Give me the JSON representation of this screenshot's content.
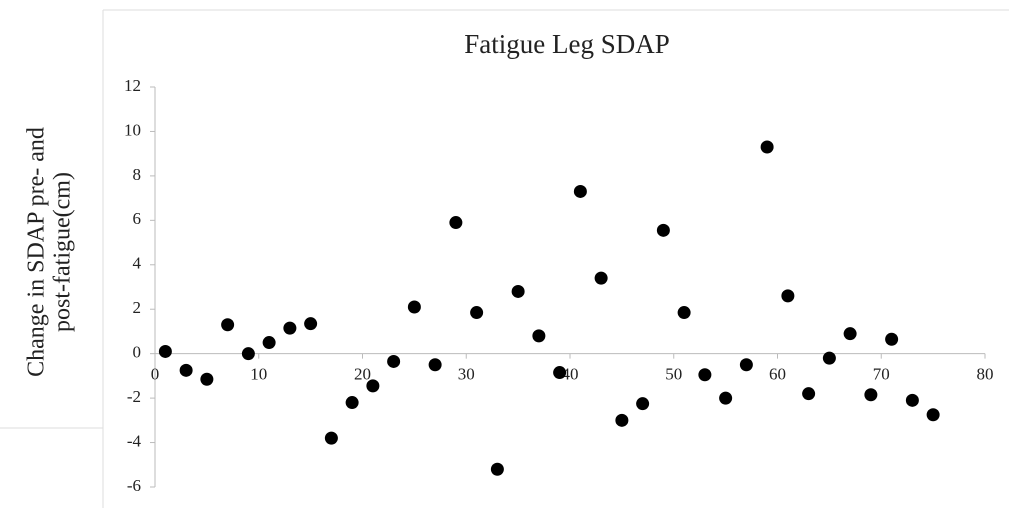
{
  "chart_data": {
    "type": "scatter",
    "title": "Fatigue Leg SDAP",
    "y_label": [
      "Change in SDAP pre- and",
      "post-fatigue(cm)"
    ],
    "color": "#000000",
    "x": [
      1,
      3,
      5,
      7,
      9,
      11,
      13,
      15,
      17,
      19,
      21,
      23,
      25,
      27,
      29,
      31,
      33,
      35,
      37,
      39,
      41,
      43,
      45,
      47,
      49,
      51,
      53,
      55,
      57,
      59,
      61,
      63,
      65,
      67,
      69,
      71,
      73,
      75
    ],
    "values": [
      0.1,
      -0.75,
      -1.15,
      1.3,
      0,
      0.5,
      1.15,
      1.35,
      -3.8,
      -2.2,
      -1.45,
      -0.35,
      2.1,
      -0.5,
      5.9,
      1.85,
      -5.2,
      2.8,
      0.8,
      -0.85,
      7.3,
      3.4,
      -3,
      -2.25,
      5.55,
      1.85,
      -0.95,
      -2,
      -0.5,
      9.3,
      2.6,
      -1.8,
      -0.2,
      0.9,
      -1.85,
      0.65,
      -2.1,
      -2.75
    ],
    "xlim": [
      0,
      80
    ],
    "xticks": [
      0,
      10,
      20,
      30,
      40,
      50,
      60,
      70,
      80
    ],
    "ylim": [
      -6,
      12
    ],
    "yticks": [
      -6,
      -4,
      -2,
      0,
      2,
      4,
      6,
      8,
      10,
      12
    ]
  }
}
